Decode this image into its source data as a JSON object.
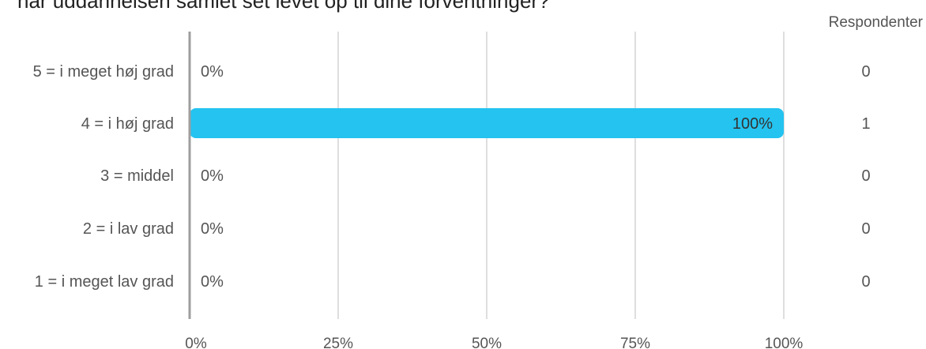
{
  "title": "har uddannelsen samlet set levet op til dine forventninger?",
  "respondents_header": "Respondenter",
  "chart_data": {
    "type": "bar",
    "orientation": "horizontal",
    "categories": [
      "5 = i meget høj grad",
      "4 = i høj grad",
      "3 = middel",
      "2 = i lav grad",
      "1 = i meget lav grad"
    ],
    "values": [
      0,
      100,
      0,
      0,
      0
    ],
    "value_labels": [
      "0%",
      "100%",
      "0%",
      "0%",
      "0%"
    ],
    "respondents": [
      0,
      1,
      0,
      0,
      0
    ],
    "x_ticks": [
      "0%",
      "25%",
      "50%",
      "75%",
      "100%"
    ],
    "xlim": [
      0,
      100
    ],
    "grid": true,
    "bar_color": "#24c3f0"
  }
}
